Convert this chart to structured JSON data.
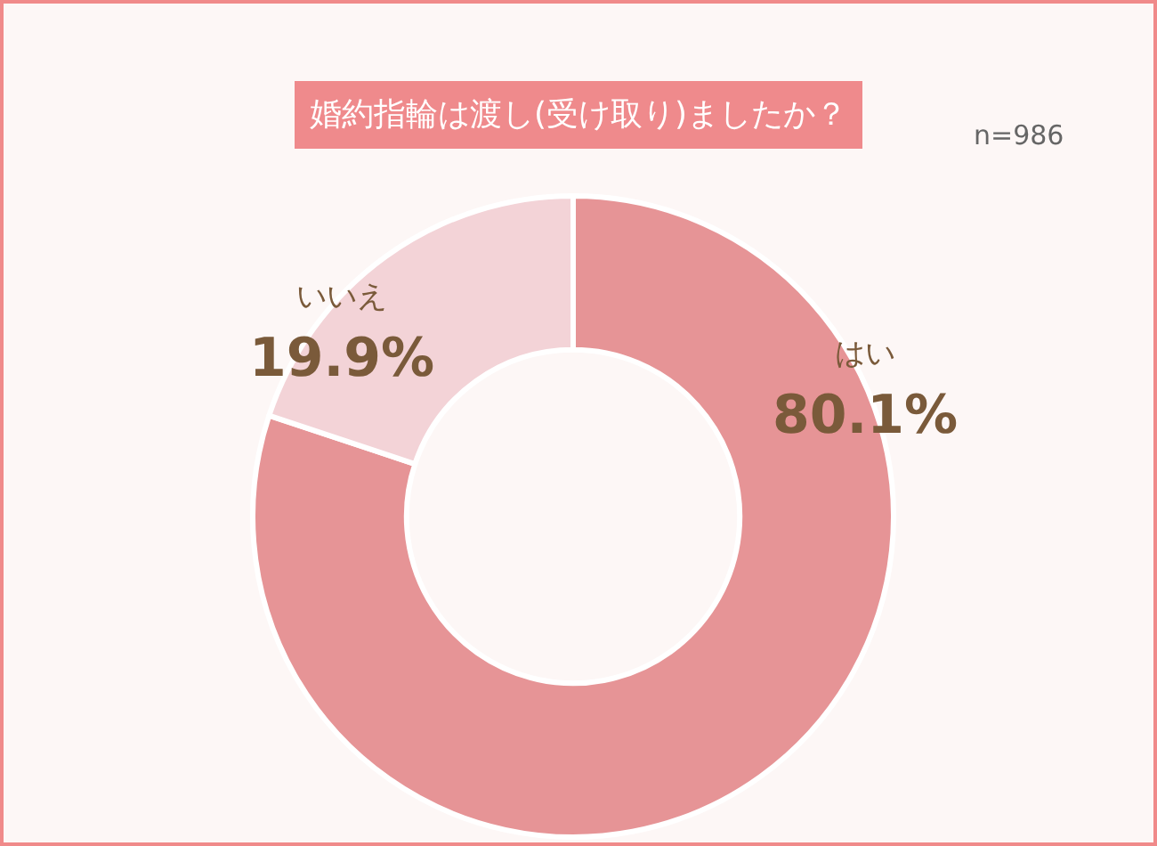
{
  "chart_data": {
    "type": "donut",
    "title": "婚約指輪は渡し(受け取り)ましたか？",
    "annotations": [
      "n=986"
    ],
    "categories": [
      "はい",
      "いいえ"
    ],
    "values": [
      80.1,
      19.9
    ],
    "colors": [
      "#e69496",
      "#f3d3d7"
    ],
    "value_labels": [
      "80.1%",
      "19.9%"
    ],
    "legend": false
  }
}
